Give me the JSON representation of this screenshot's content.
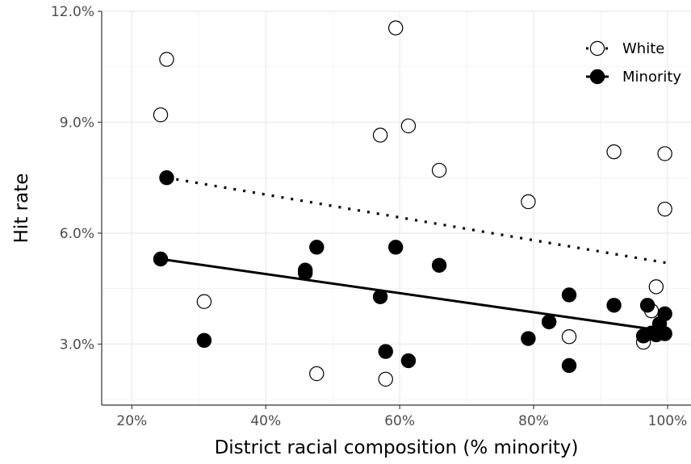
{
  "chart_data": {
    "type": "scatter",
    "xlabel": "District racial composition (% minority)",
    "ylabel": "Hit rate",
    "xlim": [
      15.5,
      103.5
    ],
    "ylim": [
      1.35,
      12.0
    ],
    "x_ticks": [
      20,
      40,
      60,
      80,
      100
    ],
    "x_tick_labels": [
      "20%",
      "40%",
      "60%",
      "80%",
      "100%"
    ],
    "y_ticks": [
      3,
      6,
      9,
      12
    ],
    "y_tick_labels": [
      "3.0%",
      "6.0%",
      "9.0%",
      "12.0%"
    ],
    "grid": true,
    "legend_position": "top-right",
    "series": [
      {
        "name": "White",
        "marker": "open-circle",
        "line_style": "dotted",
        "trend": [
          [
            25.2,
            7.5
          ],
          [
            99.7,
            5.2
          ]
        ],
        "points": [
          [
            25.2,
            10.7
          ],
          [
            24.3,
            9.2
          ],
          [
            30.8,
            4.15
          ],
          [
            47.6,
            2.2
          ],
          [
            57.9,
            2.05
          ],
          [
            59.4,
            11.55
          ],
          [
            57.1,
            8.65
          ],
          [
            61.3,
            8.9
          ],
          [
            65.9,
            7.7
          ],
          [
            79.2,
            6.85
          ],
          [
            85.3,
            3.2
          ],
          [
            92.0,
            8.2
          ],
          [
            99.6,
            8.15
          ],
          [
            99.6,
            6.65
          ],
          [
            98.3,
            4.55
          ],
          [
            97.6,
            3.9
          ],
          [
            96.4,
            3.05
          ]
        ]
      },
      {
        "name": "Minority",
        "marker": "filled-circle",
        "line_style": "solid",
        "trend": [
          [
            24.3,
            5.3
          ],
          [
            99.7,
            3.35
          ]
        ],
        "points": [
          [
            25.2,
            7.5
          ],
          [
            24.3,
            5.3
          ],
          [
            30.8,
            3.1
          ],
          [
            45.9,
            5.0
          ],
          [
            45.9,
            4.92
          ],
          [
            47.6,
            5.62
          ],
          [
            57.1,
            4.28
          ],
          [
            57.9,
            2.8
          ],
          [
            59.4,
            5.62
          ],
          [
            61.3,
            2.55
          ],
          [
            65.9,
            5.13
          ],
          [
            79.2,
            3.15
          ],
          [
            82.3,
            3.6
          ],
          [
            85.3,
            4.33
          ],
          [
            85.3,
            2.42
          ],
          [
            92.0,
            4.05
          ],
          [
            97.0,
            4.05
          ],
          [
            99.6,
            3.82
          ],
          [
            98.8,
            3.55
          ],
          [
            97.6,
            3.3
          ],
          [
            96.4,
            3.22
          ],
          [
            98.3,
            3.25
          ],
          [
            99.6,
            3.28
          ]
        ]
      }
    ]
  }
}
